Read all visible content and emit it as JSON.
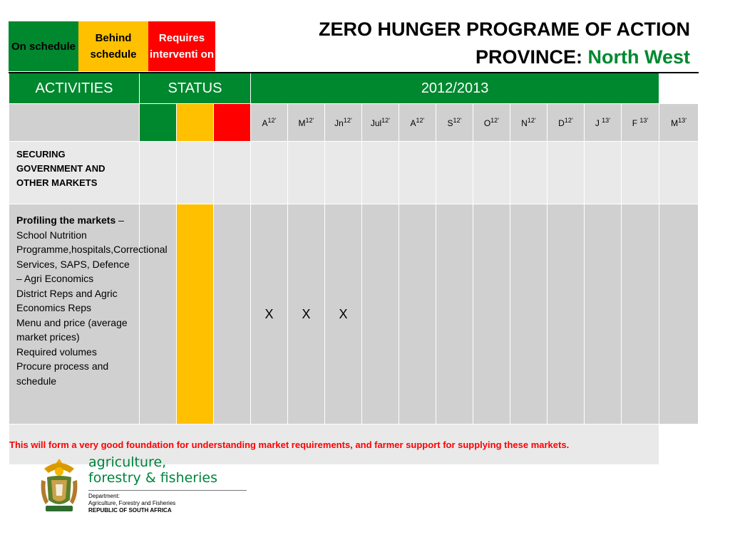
{
  "legend": {
    "on_schedule": "On schedule",
    "behind_schedule": "Behind schedule",
    "requires_intervention": "Requires interventi on",
    "colors": {
      "green": "#00882f",
      "amber": "#ffc000",
      "red": "#ff0000"
    }
  },
  "title": {
    "line1": "ZERO HUNGER PROGRAME OF ACTION",
    "province_label": "PROVINCE:",
    "province_name": "North West"
  },
  "table": {
    "headers": {
      "activities": "ACTIVITIES",
      "status": "STATUS",
      "period": "2012/2013"
    },
    "months": [
      {
        "m": "A",
        "y": "12’"
      },
      {
        "m": "M",
        "y": "12’"
      },
      {
        "m": "Jn",
        "y": "12’"
      },
      {
        "m": "Jul",
        "y": "12’"
      },
      {
        "m": "A",
        "y": "12’"
      },
      {
        "m": "S",
        "y": "12’"
      },
      {
        "m": "O",
        "y": "12’"
      },
      {
        "m": "N",
        "y": "12’"
      },
      {
        "m": "D",
        "y": "12’"
      },
      {
        "m": "J ",
        "y": "13’"
      },
      {
        "m": "F ",
        "y": "13’"
      },
      {
        "m": "M",
        "y": "13’"
      }
    ],
    "section_heading": "SECURING GOVERNMENT AND OTHER MARKETS",
    "activity": {
      "title": "Profiling the markets",
      "dash": " – ",
      "lines": [
        "School Nutrition Programme,hospitals,Correctional Services, SAPS, Defence – Agri Economics",
        "District Reps and Agric Economics Reps",
        "Menu and price (average market prices)",
        "Required volumes",
        "Procure process and schedule"
      ],
      "status": "Behind schedule",
      "marks": [
        "X",
        "X",
        "X",
        "",
        "",
        "",
        "",
        "",
        "",
        "",
        "",
        ""
      ]
    },
    "note": "This will form a very good foundation for understanding market requirements, and farmer support for supplying these markets."
  },
  "logo": {
    "ministry_line1": "agriculture,",
    "ministry_line2": "forestry & fisheries",
    "dept_line1": "Department:",
    "dept_line2": "Agriculture, Forestry and Fisheries",
    "dept_line3": "REPUBLIC OF SOUTH AFRICA",
    "crest_icon": "coat-of-arms-icon"
  }
}
